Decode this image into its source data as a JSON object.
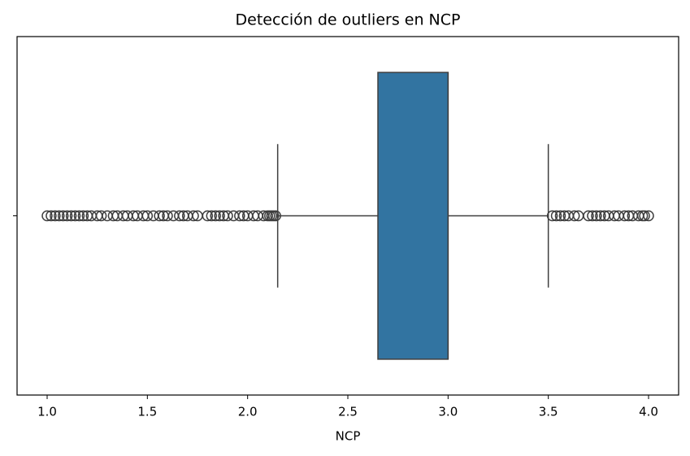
{
  "chart_data": {
    "type": "box",
    "title": "Detección de outliers en NCP",
    "x_label": "NCP",
    "xlim": [
      0.85,
      4.15
    ],
    "xticks": [
      {
        "value": 1,
        "label": "1.0"
      },
      1.5,
      {
        "value": 2,
        "label": "2.0"
      },
      2.5,
      {
        "value": 3,
        "label": "3.0"
      },
      3.5,
      {
        "value": 4,
        "label": "4.0"
      }
    ],
    "categories": [
      null
    ],
    "color": "#3274a1",
    "edge_color": "#3f3f3f",
    "boxes": [
      {
        "whislo": 2.15,
        "q1": 2.65,
        "med": 3.0,
        "q3": 3.0,
        "whishi": 3.5,
        "fliers": [
          1.0,
          1.02,
          1.04,
          1.06,
          1.08,
          1.1,
          1.12,
          1.14,
          1.16,
          1.18,
          1.2,
          1.22,
          1.25,
          1.27,
          1.3,
          1.33,
          1.35,
          1.38,
          1.4,
          1.43,
          1.45,
          1.48,
          1.5,
          1.53,
          1.56,
          1.58,
          1.6,
          1.63,
          1.66,
          1.68,
          1.7,
          1.73,
          1.75,
          1.8,
          1.82,
          1.84,
          1.86,
          1.88,
          1.9,
          1.93,
          1.96,
          1.98,
          2.0,
          2.03,
          2.05,
          2.08,
          2.1,
          2.11,
          2.12,
          2.13,
          2.14,
          3.52,
          3.54,
          3.56,
          3.58,
          3.6,
          3.63,
          3.65,
          3.7,
          3.72,
          3.74,
          3.76,
          3.78,
          3.8,
          3.83,
          3.85,
          3.88,
          3.9,
          3.92,
          3.95,
          3.97,
          3.98,
          4.0
        ]
      }
    ]
  }
}
